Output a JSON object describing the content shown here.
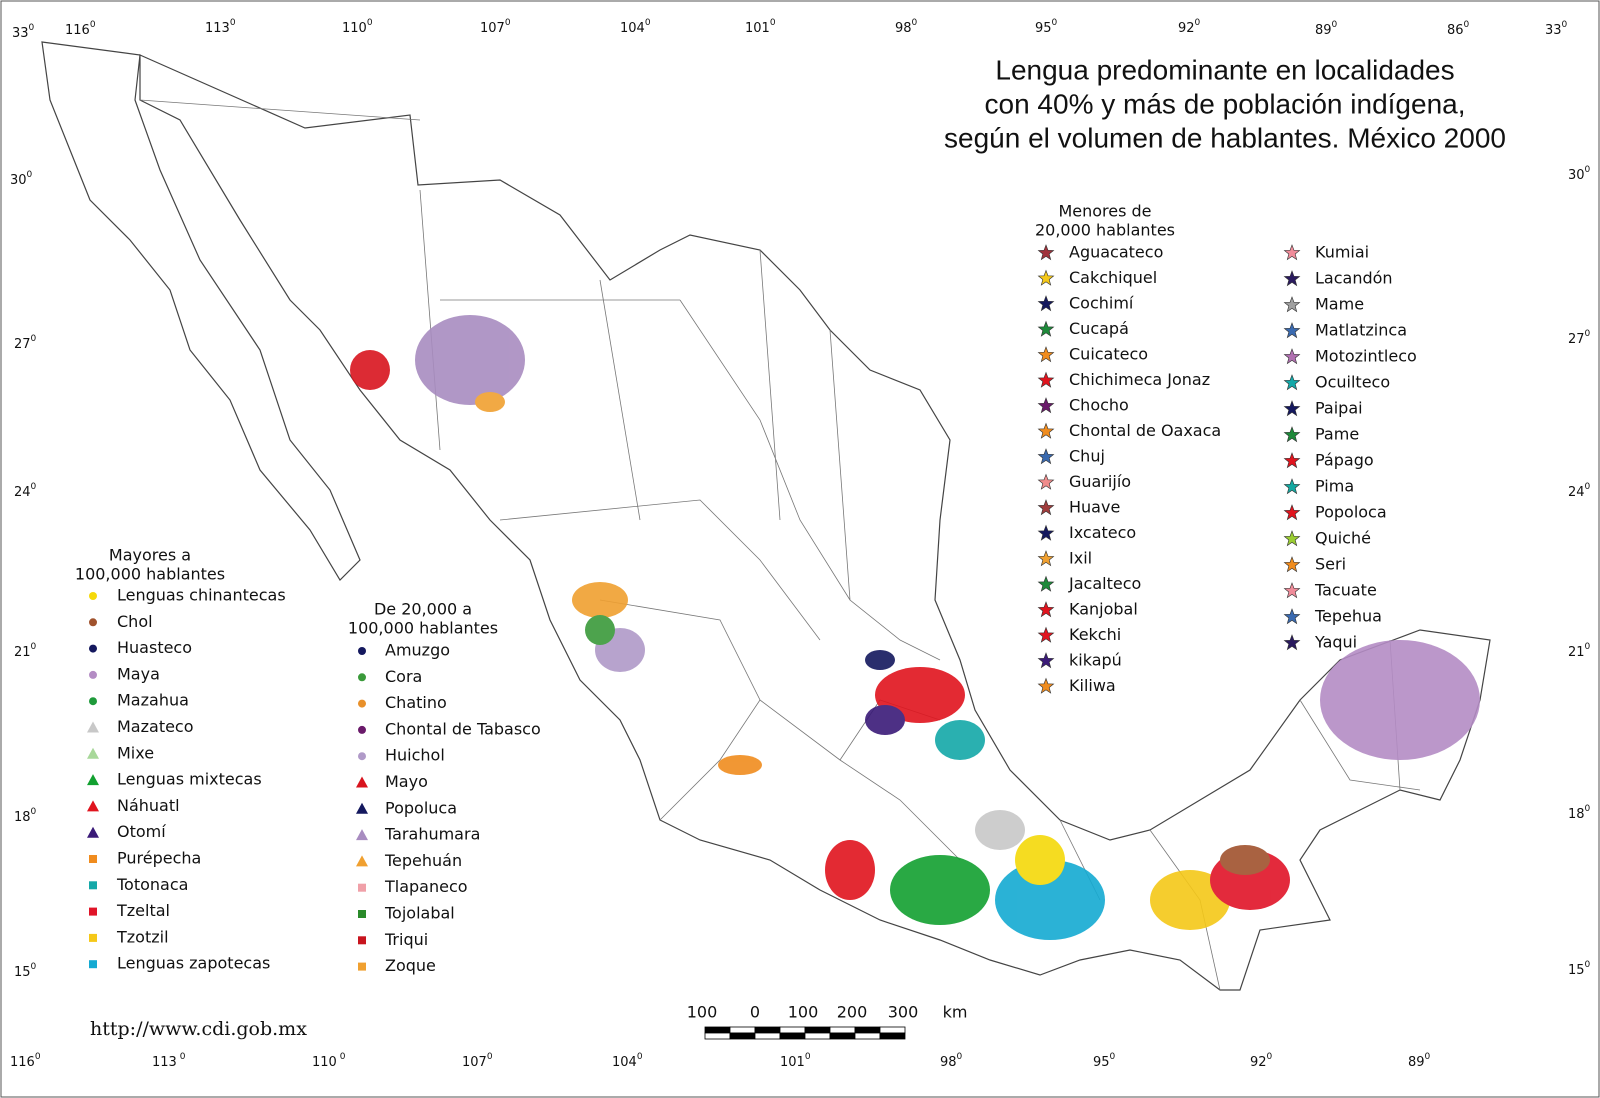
{
  "title": [
    "Lengua predominante en localidades",
    "con 40% y más de población indígena,",
    "según el volumen de hablantes. México 2000"
  ],
  "coordinates": {
    "top": [
      {
        "text": "33",
        "sup": "0"
      },
      {
        "text": "116",
        "sup": "0"
      },
      {
        "text": "113",
        "sup": "0"
      },
      {
        "text": "110",
        "sup": "0"
      },
      {
        "text": "107",
        "sup": "0"
      },
      {
        "text": "104",
        "sup": "0"
      },
      {
        "text": "101",
        "sup": "0"
      },
      {
        "text": "98",
        "sup": "0"
      },
      {
        "text": "95",
        "sup": "0"
      },
      {
        "text": "92",
        "sup": "0"
      },
      {
        "text": "89",
        "sup": "0"
      },
      {
        "text": "86",
        "sup": "0"
      },
      {
        "text": "33",
        "sup": "0"
      }
    ],
    "left": [
      {
        "text": "30",
        "sup": "0"
      },
      {
        "text": "27",
        "sup": "0"
      },
      {
        "text": "24",
        "sup": "0"
      },
      {
        "text": "21",
        "sup": "0"
      },
      {
        "text": "18",
        "sup": "0"
      },
      {
        "text": "15",
        "sup": "0"
      }
    ],
    "right": [
      {
        "text": "30",
        "sup": "0"
      },
      {
        "text": "27",
        "sup": "0"
      },
      {
        "text": "24",
        "sup": "0"
      },
      {
        "text": "21",
        "sup": "0"
      },
      {
        "text": "18",
        "sup": "0"
      },
      {
        "text": "15",
        "sup": "0"
      }
    ],
    "bottom": [
      {
        "text": "116",
        "sup": "0"
      },
      {
        "text": "113",
        "sup": " 0"
      },
      {
        "text": "110",
        "sup": " 0"
      },
      {
        "text": "107",
        "sup": "0"
      },
      {
        "text": "104",
        "sup": "0"
      },
      {
        "text": "101",
        "sup": "0"
      },
      {
        "text": "98",
        "sup": "0"
      },
      {
        "text": "95",
        "sup": "0"
      },
      {
        "text": "92",
        "sup": "0"
      },
      {
        "text": "89",
        "sup": "0"
      }
    ]
  },
  "legend_large": {
    "heading": [
      "Mayores a",
      "100,000 hablantes"
    ],
    "items": [
      {
        "name": "Lenguas chinantecas",
        "color": "#f5d90a",
        "shape": "circle"
      },
      {
        "name": "Chol",
        "color": "#a0522d",
        "shape": "circle"
      },
      {
        "name": "Huasteco",
        "color": "#14185e",
        "shape": "circle"
      },
      {
        "name": "Maya",
        "color": "#b48cc4",
        "shape": "circle"
      },
      {
        "name": "Mazahua",
        "color": "#1e9a3a",
        "shape": "circle"
      },
      {
        "name": "Mazateco",
        "color": "#c8c8c8",
        "shape": "triangle"
      },
      {
        "name": "Mixe",
        "color": "#a8d89a",
        "shape": "triangle"
      },
      {
        "name": "Lenguas mixtecas",
        "color": "#12a030",
        "shape": "triangle"
      },
      {
        "name": "Náhuatl",
        "color": "#e0141e",
        "shape": "triangle"
      },
      {
        "name": "Otomí",
        "color": "#3a1a78",
        "shape": "triangle"
      },
      {
        "name": "Purépecha",
        "color": "#f08c1e",
        "shape": "square"
      },
      {
        "name": "Totonaca",
        "color": "#14a8a8",
        "shape": "square"
      },
      {
        "name": "Tzeltal",
        "color": "#e01428",
        "shape": "square"
      },
      {
        "name": "Tzotzil",
        "color": "#f5c818",
        "shape": "square"
      },
      {
        "name": "Lenguas zapotecas",
        "color": "#14aad2",
        "shape": "square"
      }
    ]
  },
  "legend_medium": {
    "heading": [
      "De 20,000 a",
      "100,000 hablantes"
    ],
    "items": [
      {
        "name": "Amuzgo",
        "color": "#14185e",
        "shape": "circle"
      },
      {
        "name": "Cora",
        "color": "#3a9a3a",
        "shape": "circle"
      },
      {
        "name": "Chatino",
        "color": "#e8902a",
        "shape": "circle"
      },
      {
        "name": "Chontal de Tabasco",
        "color": "#6a1a6a",
        "shape": "circle"
      },
      {
        "name": "Huichol",
        "color": "#b09ac8",
        "shape": "circle"
      },
      {
        "name": "Mayo",
        "color": "#d8141e",
        "shape": "triangle"
      },
      {
        "name": "Popoluca",
        "color": "#14185e",
        "shape": "triangle"
      },
      {
        "name": "Tarahumara",
        "color": "#a88cc0",
        "shape": "triangle"
      },
      {
        "name": "Tepehuán",
        "color": "#f0a030",
        "shape": "triangle"
      },
      {
        "name": "Tlapaneco",
        "color": "#f0a0a8",
        "shape": "square"
      },
      {
        "name": "Tojolabal",
        "color": "#2a8a2a",
        "shape": "square"
      },
      {
        "name": "Triqui",
        "color": "#c8141e",
        "shape": "square"
      },
      {
        "name": "Zoque",
        "color": "#f0a030",
        "shape": "square"
      }
    ]
  },
  "legend_small": {
    "heading": [
      "Menores de",
      "20,000 hablantes"
    ],
    "columns": [
      [
        {
          "name": "Aguacateco",
          "color": "#a0323c",
          "shape": "star"
        },
        {
          "name": "Cakchiquel",
          "color": "#f5c818",
          "shape": "star"
        },
        {
          "name": "Cochimí",
          "color": "#14185e",
          "shape": "star"
        },
        {
          "name": "Cucapá",
          "color": "#1e8a3a",
          "shape": "star"
        },
        {
          "name": "Cuicateco",
          "color": "#f08c1e",
          "shape": "star"
        },
        {
          "name": "Chichimeca Jonaz",
          "color": "#e0141e",
          "shape": "star"
        },
        {
          "name": "Chocho",
          "color": "#6a1a6a",
          "shape": "star"
        },
        {
          "name": "Chontal de Oaxaca",
          "color": "#f08c1e",
          "shape": "star"
        },
        {
          "name": "Chuj",
          "color": "#3a6ab0",
          "shape": "star"
        },
        {
          "name": "Guarijío",
          "color": "#f08c8c",
          "shape": "star"
        },
        {
          "name": "Huave",
          "color": "#a03c3c",
          "shape": "star"
        },
        {
          "name": "Ixcateco",
          "color": "#14185e",
          "shape": "star"
        },
        {
          "name": "Ixil",
          "color": "#f0a030",
          "shape": "star"
        },
        {
          "name": "Jacalteco",
          "color": "#1e8a3a",
          "shape": "star"
        },
        {
          "name": "Kanjobal",
          "color": "#e0141e",
          "shape": "star"
        },
        {
          "name": "Kekchi",
          "color": "#e0141e",
          "shape": "star"
        },
        {
          "name": "kikapú",
          "color": "#3a1a78",
          "shape": "star"
        },
        {
          "name": "Kiliwa",
          "color": "#f08c1e",
          "shape": "star"
        }
      ],
      [
        {
          "name": "Kumiai",
          "color": "#f08c9a",
          "shape": "star"
        },
        {
          "name": "Lacandón",
          "color": "#2a1a5e",
          "shape": "star"
        },
        {
          "name": "Mame",
          "color": "#a0a0a0",
          "shape": "star"
        },
        {
          "name": "Matlatzinca",
          "color": "#3a6ab0",
          "shape": "star"
        },
        {
          "name": "Motozintleco",
          "color": "#b070b0",
          "shape": "star"
        },
        {
          "name": "Ocuilteco",
          "color": "#14a8a8",
          "shape": "star"
        },
        {
          "name": "Paipai",
          "color": "#14185e",
          "shape": "star"
        },
        {
          "name": "Pame",
          "color": "#1e8a3a",
          "shape": "star"
        },
        {
          "name": "Pápago",
          "color": "#e0141e",
          "shape": "star"
        },
        {
          "name": "Pima",
          "color": "#14a8a0",
          "shape": "star"
        },
        {
          "name": "Popoloca",
          "color": "#e0141e",
          "shape": "star"
        },
        {
          "name": "Quiché",
          "color": "#9acd32",
          "shape": "star"
        },
        {
          "name": "Seri",
          "color": "#f08c1e",
          "shape": "star"
        },
        {
          "name": "Tacuate",
          "color": "#f08c9a",
          "shape": "star"
        },
        {
          "name": "Tepehua",
          "color": "#3a6ab0",
          "shape": "star"
        },
        {
          "name": "Yaqui",
          "color": "#2a1a5e",
          "shape": "star"
        }
      ]
    ]
  },
  "scale_bar": {
    "labels": [
      "100",
      "0",
      "100",
      "200",
      "300",
      "km"
    ]
  },
  "url": "http://www.cdi.gob.mx"
}
